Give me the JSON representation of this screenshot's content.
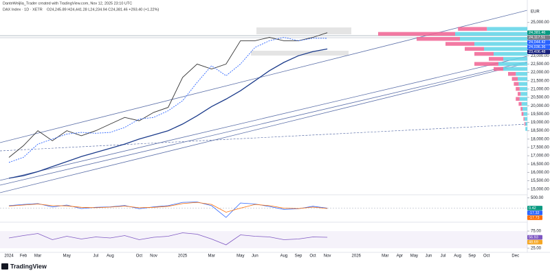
{
  "header": {
    "credit": "DanteWeijlia_Trader created with TradingView.com, Nov 12, 2025 23:10 UTC",
    "symbol": "DAX Index · 1D · XETR",
    "ohlc": "O24,245.89 H24,441.28 L24,234.94 C24,381.46 +293.40 (+1.22%)"
  },
  "chart_data": {
    "type": "line",
    "currency": "EUR",
    "categories": [
      "2024",
      "Feb",
      "Mar",
      null,
      "May",
      null,
      "Jul",
      "Aug",
      null,
      "Oct",
      "Nov",
      null,
      "2025",
      null,
      "Mar",
      null,
      "May",
      "Jun",
      null,
      "Aug",
      "Sep",
      "Oct",
      "Nov",
      null,
      "2026",
      null,
      "Mar",
      "Apr",
      "May",
      "Jun",
      "Jul",
      "Aug",
      "Sep",
      "Oct",
      null,
      "Dec"
    ],
    "series": [
      {
        "color": "#333333",
        "values": [
          16900,
          17600,
          18500,
          17900,
          18500,
          18200,
          18500,
          18900,
          19300,
          19100,
          19600,
          19900,
          21700,
          22500,
          22200,
          22500,
          23900,
          23900,
          24100,
          23900,
          23900,
          24100,
          24381.46,
          null,
          null,
          null,
          null,
          null,
          null,
          null,
          null,
          null,
          null,
          null,
          null,
          null
        ]
      },
      {
        "color": "#2962ff",
        "dashed": true,
        "values": [
          16600,
          16900,
          17700,
          18000,
          18300,
          18400,
          18350,
          18400,
          18700,
          19200,
          19300,
          19700,
          20300,
          21400,
          22400,
          21800,
          22500,
          23500,
          23900,
          24100,
          23900,
          24050,
          24044.42,
          null,
          null,
          null,
          null,
          null,
          null,
          null,
          null,
          null,
          null,
          null,
          null,
          null
        ]
      },
      {
        "color": "#1a3a8a",
        "values": [
          15650,
          15800,
          16050,
          16350,
          16650,
          16950,
          17200,
          17450,
          17700,
          18000,
          18250,
          18500,
          18900,
          19400,
          19950,
          20400,
          20900,
          21500,
          22100,
          22600,
          23000,
          23250,
          23406.48,
          null,
          null,
          null,
          null,
          null,
          null,
          null,
          null,
          null,
          null,
          null,
          null,
          null
        ]
      }
    ],
    "ylim": [
      14700,
      25850
    ],
    "yticks": [
      {
        "value": 15000,
        "label": "15,000.00"
      },
      {
        "value": 15500,
        "label": "15,500.00"
      },
      {
        "value": 16000,
        "label": "16,000.00"
      },
      {
        "value": 16500,
        "label": "16,500.00"
      },
      {
        "value": 17000,
        "label": "17,000.00"
      },
      {
        "value": 17500,
        "label": "17,500.00"
      },
      {
        "value": 18000,
        "label": "18,000.00"
      },
      {
        "value": 18500,
        "label": "18,500.00"
      },
      {
        "value": 19000,
        "label": "19,000.00"
      },
      {
        "value": 19500,
        "label": "19,500.00"
      },
      {
        "value": 20000,
        "label": "20,000.00"
      },
      {
        "value": 20500,
        "label": "20,500.00"
      },
      {
        "value": 21000,
        "label": "21,000.00"
      },
      {
        "value": 21500,
        "label": "21,500.00"
      },
      {
        "value": 22000,
        "label": "22,000.00"
      },
      {
        "value": 22500,
        "label": "22,500.00"
      },
      {
        "value": 23000,
        "label": "23,000.00"
      },
      {
        "value": 25000,
        "label": "25,000.00"
      }
    ],
    "price_labels": {
      "values": [
        24381.46,
        24117.51,
        24044.42,
        24036.36,
        23406.48
      ],
      "value_labels": [
        "24,381.46",
        "24,117.51",
        "24,044.42",
        "24,036.36",
        "23,406.48"
      ],
      "colors": [
        "#089981",
        "#787b86",
        "#2962ff",
        "#2962ff",
        "#1a237e"
      ]
    },
    "volume_profile": {
      "levels": [
        24600,
        24300,
        24000,
        23700,
        23400,
        23100,
        22800,
        22500,
        22200,
        21900,
        21600,
        21300,
        21000,
        20700,
        20400,
        20100,
        19800,
        19500,
        19200,
        18900,
        18600
      ],
      "up": [
        42,
        75,
        70,
        55,
        45,
        35,
        25,
        30,
        25,
        12,
        10,
        9,
        8,
        7,
        8,
        6,
        5,
        4,
        3,
        2,
        2
      ],
      "down": [
        30,
        80,
        45,
        30,
        20,
        20,
        15,
        25,
        10,
        8,
        6,
        5,
        4,
        3,
        4,
        3,
        2,
        2,
        1,
        1,
        0
      ],
      "up_color": "#5fd3e6",
      "down_color": "#f06292"
    },
    "macd": {
      "ylim": [
        -650,
        650
      ],
      "yticks": [
        {
          "value": 500,
          "label": "500.00"
        }
      ],
      "macd": [
        120,
        180,
        220,
        60,
        150,
        -20,
        40,
        60,
        130,
        -30,
        60,
        120,
        280,
        300,
        120,
        -450,
        250,
        200,
        80,
        -60,
        -30,
        90,
        0.42,
        null,
        null,
        null,
        null,
        null,
        null,
        null,
        null,
        null,
        null,
        null,
        null,
        null
      ],
      "signal": [
        100,
        150,
        200,
        120,
        110,
        40,
        20,
        50,
        100,
        20,
        40,
        90,
        220,
        280,
        180,
        -200,
        0,
        180,
        120,
        0,
        -20,
        50,
        -17.32,
        null,
        null,
        null,
        null,
        null,
        null,
        null,
        null,
        null,
        null,
        null,
        null,
        null
      ],
      "colors": [
        "#2962ff",
        "#ff6d00"
      ],
      "labels": [
        0.42,
        -17.32,
        -17.73
      ],
      "label_colors": [
        "#089981",
        "#2962ff",
        "#ff6d00"
      ]
    },
    "rsi": {
      "ylim": [
        15,
        99
      ],
      "yticks": [
        {
          "value": 75,
          "label": "75.00"
        },
        {
          "value": 25,
          "label": "25.00"
        }
      ],
      "values": [
        55,
        62,
        68,
        50,
        60,
        52,
        58,
        55,
        62,
        50,
        57,
        60,
        70,
        66,
        52,
        35,
        64,
        60,
        58,
        50,
        52,
        58,
        56.93,
        null,
        null,
        null,
        null,
        null,
        null,
        null,
        null,
        null,
        null,
        null,
        null,
        null
      ],
      "color": "#7e57c2",
      "labels": [
        56.93,
        48.69
      ],
      "label_colors": [
        "#7e57c2",
        "#f5a623"
      ]
    },
    "brand": "TradingView"
  }
}
